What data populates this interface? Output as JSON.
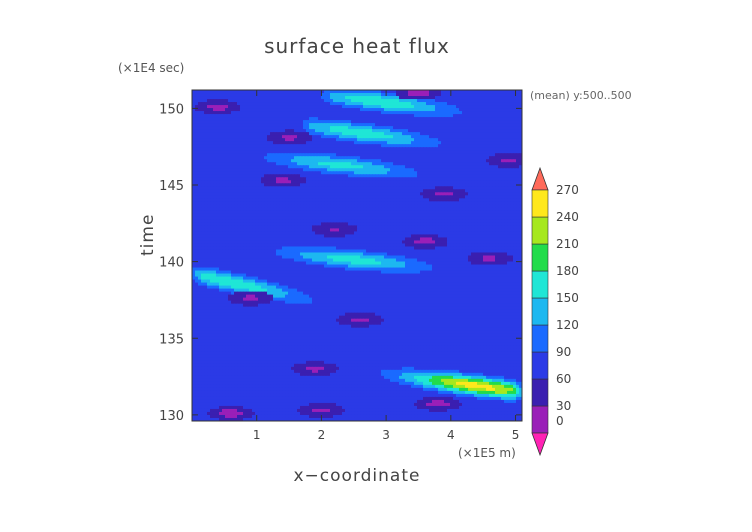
{
  "chart_data": {
    "type": "heatmap",
    "title": "surface heat flux",
    "xlabel": "x−coordinate",
    "ylabel": "time",
    "x_unit_label": "(×1E5 m)",
    "y_unit_label": "(×1E4 sec)",
    "annotation": "(mean) y:500..500",
    "x_ticks": [
      "1",
      "2",
      "3",
      "4",
      "5"
    ],
    "y_ticks": [
      "130",
      "135",
      "140",
      "145",
      "150"
    ],
    "xlim": [
      0,
      5.1
    ],
    "ylim": [
      129.6,
      151.2
    ],
    "colorbar": {
      "levels": [
        0,
        30,
        60,
        90,
        120,
        150,
        180,
        210,
        240,
        270
      ],
      "tick_labels": [
        "0",
        "30",
        "60",
        "90",
        "120",
        "150",
        "180",
        "210",
        "240",
        "270"
      ],
      "colors": [
        "#ff22b4",
        "#9a1fb8",
        "#3a1fb0",
        "#2b3ae6",
        "#1a6aff",
        "#1db8f0",
        "#1fe6d6",
        "#22dc4a",
        "#a6e81e",
        "#ffe81c",
        "#ff9c1a",
        "#ff3c1a",
        "#ff6a5a"
      ],
      "extend": "both"
    },
    "background_value": 70,
    "bands": [
      {
        "x0": 0.0,
        "y0": 134.3,
        "x1": 5.1,
        "y1": 131.5,
        "peak": 255,
        "peak_x": 4.4
      },
      {
        "x0": 0.0,
        "y0": 139.2,
        "x1": 2.4,
        "y1": 137.0,
        "peak": 175,
        "peak_x": 0.6
      },
      {
        "x0": 0.0,
        "y0": 141.2,
        "x1": 5.1,
        "y1": 139.0,
        "peak": 165,
        "peak_x": 2.5
      },
      {
        "x0": 1.0,
        "y0": 146.9,
        "x1": 5.1,
        "y1": 145.0,
        "peak": 160,
        "peak_x": 2.3
      },
      {
        "x0": 1.7,
        "y0": 148.9,
        "x1": 5.1,
        "y1": 147.0,
        "peak": 170,
        "peak_x": 2.6
      },
      {
        "x0": 2.0,
        "y0": 150.9,
        "x1": 5.1,
        "y1": 149.3,
        "peak": 175,
        "peak_x": 2.9
      }
    ],
    "cool_patches": [
      {
        "x": 0.6,
        "y": 130.1,
        "value": 20
      },
      {
        "x": 2.0,
        "y": 130.3,
        "value": 25
      },
      {
        "x": 3.8,
        "y": 130.7,
        "value": 22
      },
      {
        "x": 1.9,
        "y": 133.0,
        "value": 25
      },
      {
        "x": 2.6,
        "y": 136.2,
        "value": 25
      },
      {
        "x": 0.9,
        "y": 137.6,
        "value": 25
      },
      {
        "x": 2.2,
        "y": 142.1,
        "value": 28
      },
      {
        "x": 3.6,
        "y": 141.3,
        "value": 22
      },
      {
        "x": 4.6,
        "y": 140.2,
        "value": 25
      },
      {
        "x": 1.4,
        "y": 145.3,
        "value": 25
      },
      {
        "x": 3.9,
        "y": 144.4,
        "value": 25
      },
      {
        "x": 4.9,
        "y": 146.6,
        "value": 25
      },
      {
        "x": 0.4,
        "y": 150.1,
        "value": 22
      },
      {
        "x": 1.5,
        "y": 148.1,
        "value": 25
      },
      {
        "x": 3.5,
        "y": 151.0,
        "value": 22
      }
    ],
    "grid": false
  }
}
